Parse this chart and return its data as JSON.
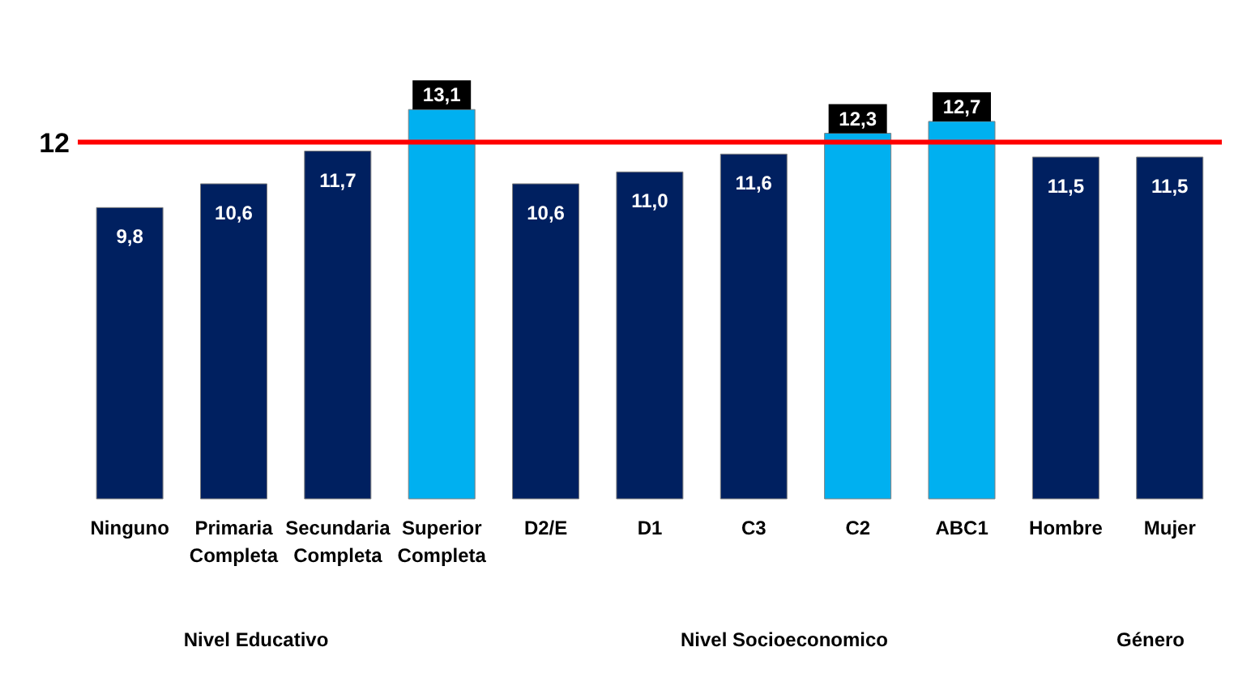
{
  "chart_data": {
    "type": "bar",
    "categories": [
      "Ninguno",
      "Primaria Completa",
      "Secundaria Completa",
      "Superior Completa",
      "D2/E",
      "D1",
      "C3",
      "C2",
      "ABC1",
      "Hombre",
      "Mujer"
    ],
    "values": [
      9.8,
      10.6,
      11.7,
      13.1,
      10.6,
      11.0,
      11.6,
      12.3,
      12.7,
      11.5,
      11.5
    ],
    "value_labels": [
      "9,8",
      "10,6",
      "11,7",
      "13,1",
      "10,6",
      "11,0",
      "11,6",
      "12,3",
      "12,7",
      "11,5",
      "11,5"
    ],
    "colors": [
      "#002060",
      "#002060",
      "#002060",
      "#00b0f0",
      "#002060",
      "#002060",
      "#002060",
      "#00b0f0",
      "#00b0f0",
      "#002060",
      "#002060"
    ],
    "ref_lines": [
      {
        "axis": "y",
        "value": 12,
        "label": "12",
        "color": "#ff0000"
      }
    ],
    "annotations": [
      "Nivel Educativo",
      "Nivel Socioeconomico",
      "Género"
    ]
  }
}
